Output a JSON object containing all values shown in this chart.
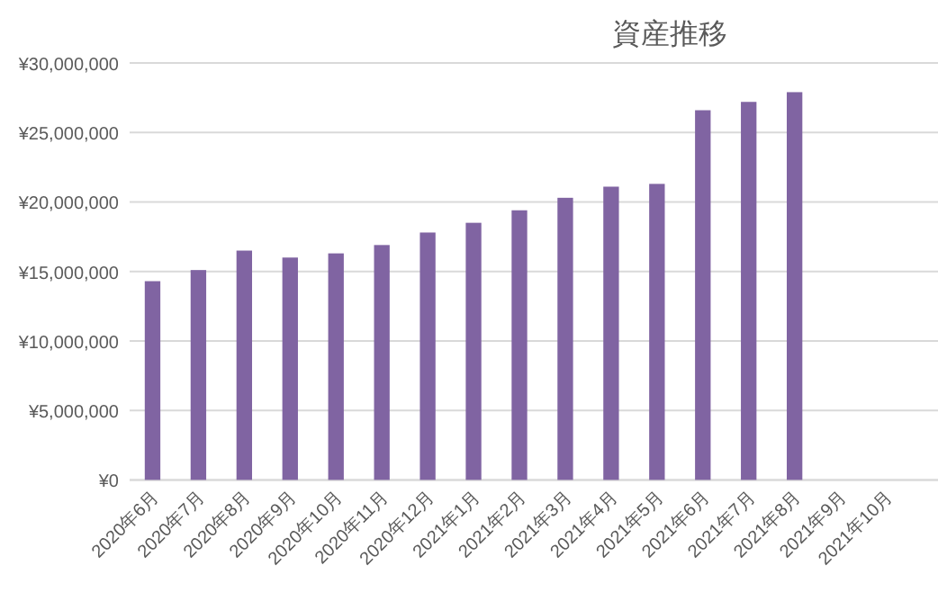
{
  "chart_data": {
    "type": "bar",
    "title": "資産推移",
    "categories": [
      "2020年6月",
      "2020年7月",
      "2020年8月",
      "2020年9月",
      "2020年10月",
      "2020年11月",
      "2020年12月",
      "2021年1月",
      "2021年2月",
      "2021年3月",
      "2021年4月",
      "2021年5月",
      "2021年6月",
      "2021年7月",
      "2021年8月",
      "2021年9月",
      "2021年10月"
    ],
    "series": [
      {
        "color": "#8064a2",
        "values": [
          14300000,
          15100000,
          16500000,
          16000000,
          16300000,
          16900000,
          17800000,
          18500000,
          19400000,
          20300000,
          21100000,
          21300000,
          26600000,
          27200000,
          27900000,
          null,
          null
        ]
      }
    ],
    "ylim": [
      0,
      30000000
    ],
    "yticks": [
      {
        "value": 0,
        "label": "¥0"
      },
      {
        "value": 5000000,
        "label": "¥5,000,000"
      },
      {
        "value": 10000000,
        "label": "¥10,000,000"
      },
      {
        "value": 15000000,
        "label": "¥15,000,000"
      },
      {
        "value": 20000000,
        "label": "¥20,000,000"
      },
      {
        "value": 25000000,
        "label": "¥25,000,000"
      },
      {
        "value": 30000000,
        "label": "¥30,000,000"
      }
    ],
    "grid": "y"
  }
}
